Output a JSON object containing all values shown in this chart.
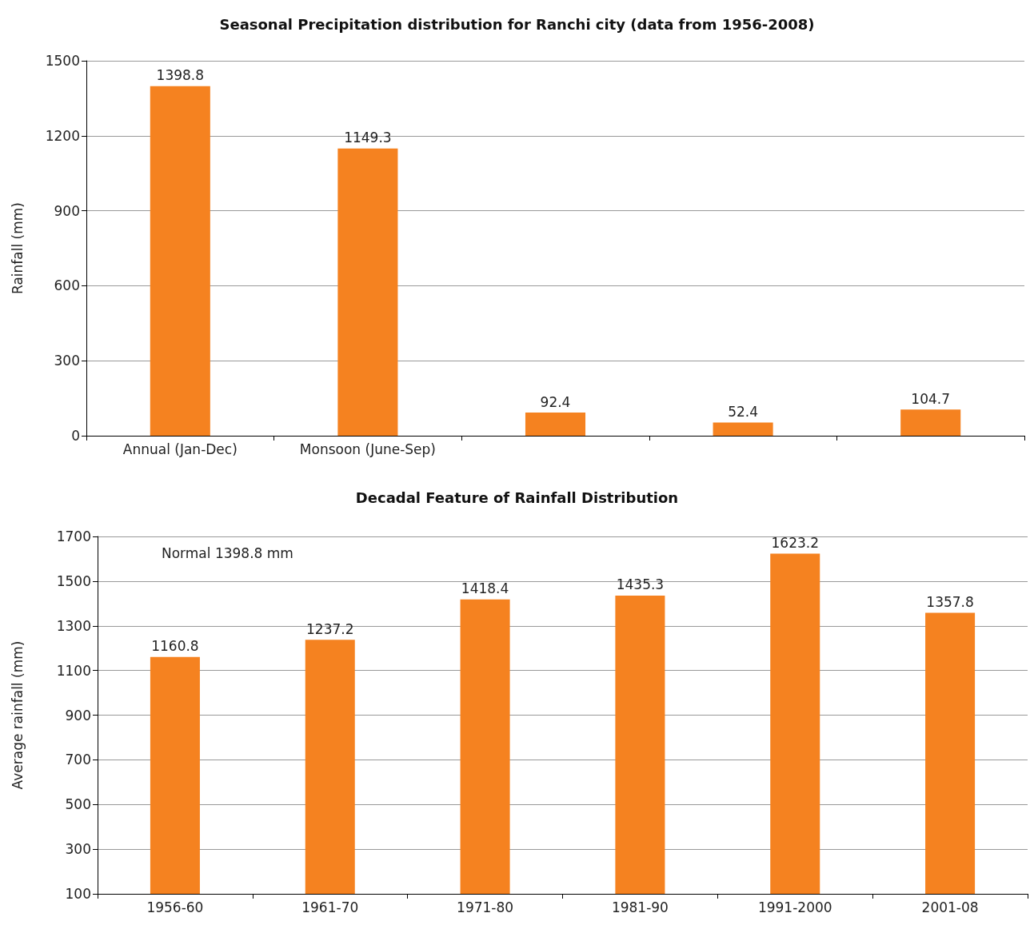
{
  "chart_data": [
    {
      "type": "bar",
      "title": "Seasonal Precipitation distribution for Ranchi city (data from 1956-2008)",
      "ylabel": "Rainfall (mm)",
      "categories": [
        "Annual (Jan-Dec)",
        "Monsoon (June-Sep)",
        null,
        null,
        null
      ],
      "values": [
        1398.8,
        1149.3,
        92.4,
        52.4,
        104.7
      ],
      "color": "#f58220",
      "ylim": [
        0,
        1500
      ],
      "yticks": [
        0,
        300,
        600,
        900,
        1200,
        1500
      ],
      "grid": "y",
      "data_labels": true
    },
    {
      "type": "bar",
      "title": "Decadal Feature of Rainfall Distribution",
      "ylabel": "Average rainfall (mm)",
      "categories": [
        "1956-60",
        "1961-70",
        "1971-80",
        "1981-90",
        "1991-2000",
        "2001-08"
      ],
      "values": [
        1160.8,
        1237.2,
        1418.4,
        1435.3,
        1623.2,
        1357.8
      ],
      "color": "#f58220",
      "ylim": [
        100,
        1700
      ],
      "yticks": [
        100,
        300,
        500,
        700,
        900,
        1100,
        1300,
        1500,
        1700
      ],
      "grid": "y",
      "data_labels": true,
      "annotations": [
        "Normal 1398.8 mm"
      ]
    }
  ]
}
